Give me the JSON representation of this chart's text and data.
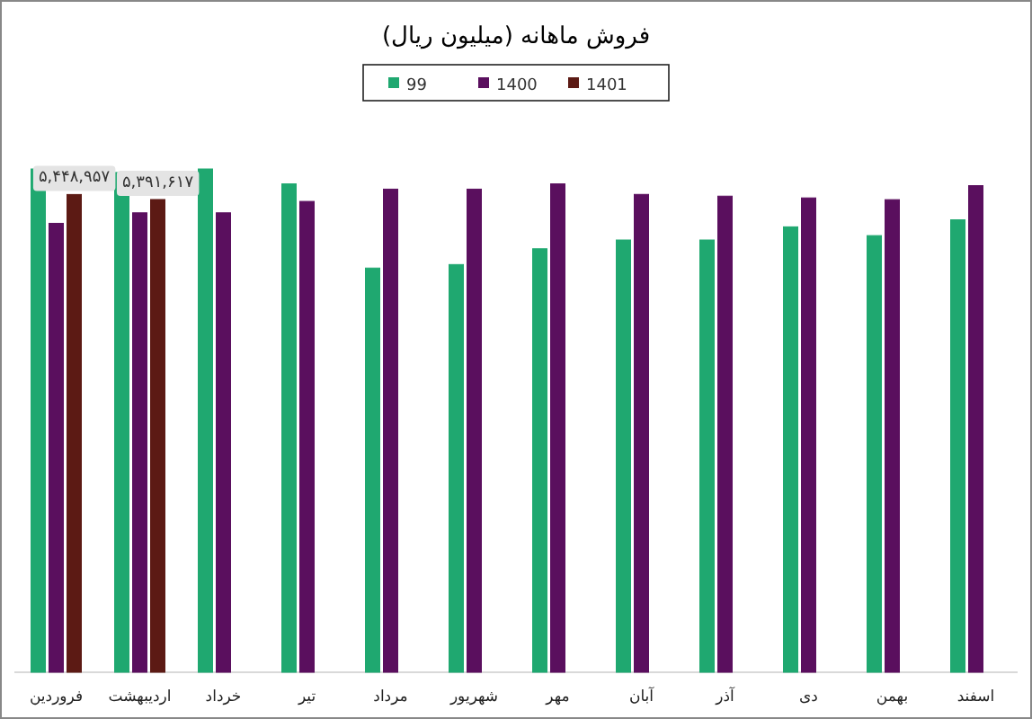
{
  "chart_data": {
    "type": "bar",
    "title": "فروش ماهانه (میلیون ریال)",
    "categories": [
      "فروردین",
      "اردیبهشت",
      "خرداد",
      "تیر",
      "مرداد",
      "شهریور",
      "مهر",
      "آبان",
      "آذر",
      "دی",
      "بهمن",
      "اسفند"
    ],
    "series": [
      {
        "name": "99",
        "color": "#1fa870",
        "values": [
          5740000,
          5700000,
          5740000,
          5570000,
          4610000,
          4650000,
          4830000,
          4930000,
          4930000,
          5080000,
          4980000,
          5160000
        ]
      },
      {
        "name": "1400",
        "color": "#5a0f5e",
        "values": [
          5120000,
          5240000,
          5240000,
          5370000,
          5510000,
          5510000,
          5570000,
          5450000,
          5430000,
          5410000,
          5390000,
          5550000
        ]
      },
      {
        "name": "1401",
        "color": "#5c1a14",
        "values": [
          5448957,
          5391617,
          null,
          null,
          null,
          null,
          null,
          null,
          null,
          null,
          null,
          null
        ],
        "value_labels": [
          "۵,۴۴۸,۹۵۷",
          "۵,۳۹۱,۶۱۷",
          null,
          null,
          null,
          null,
          null,
          null,
          null,
          null,
          null,
          null
        ]
      }
    ],
    "legend": "top"
  }
}
